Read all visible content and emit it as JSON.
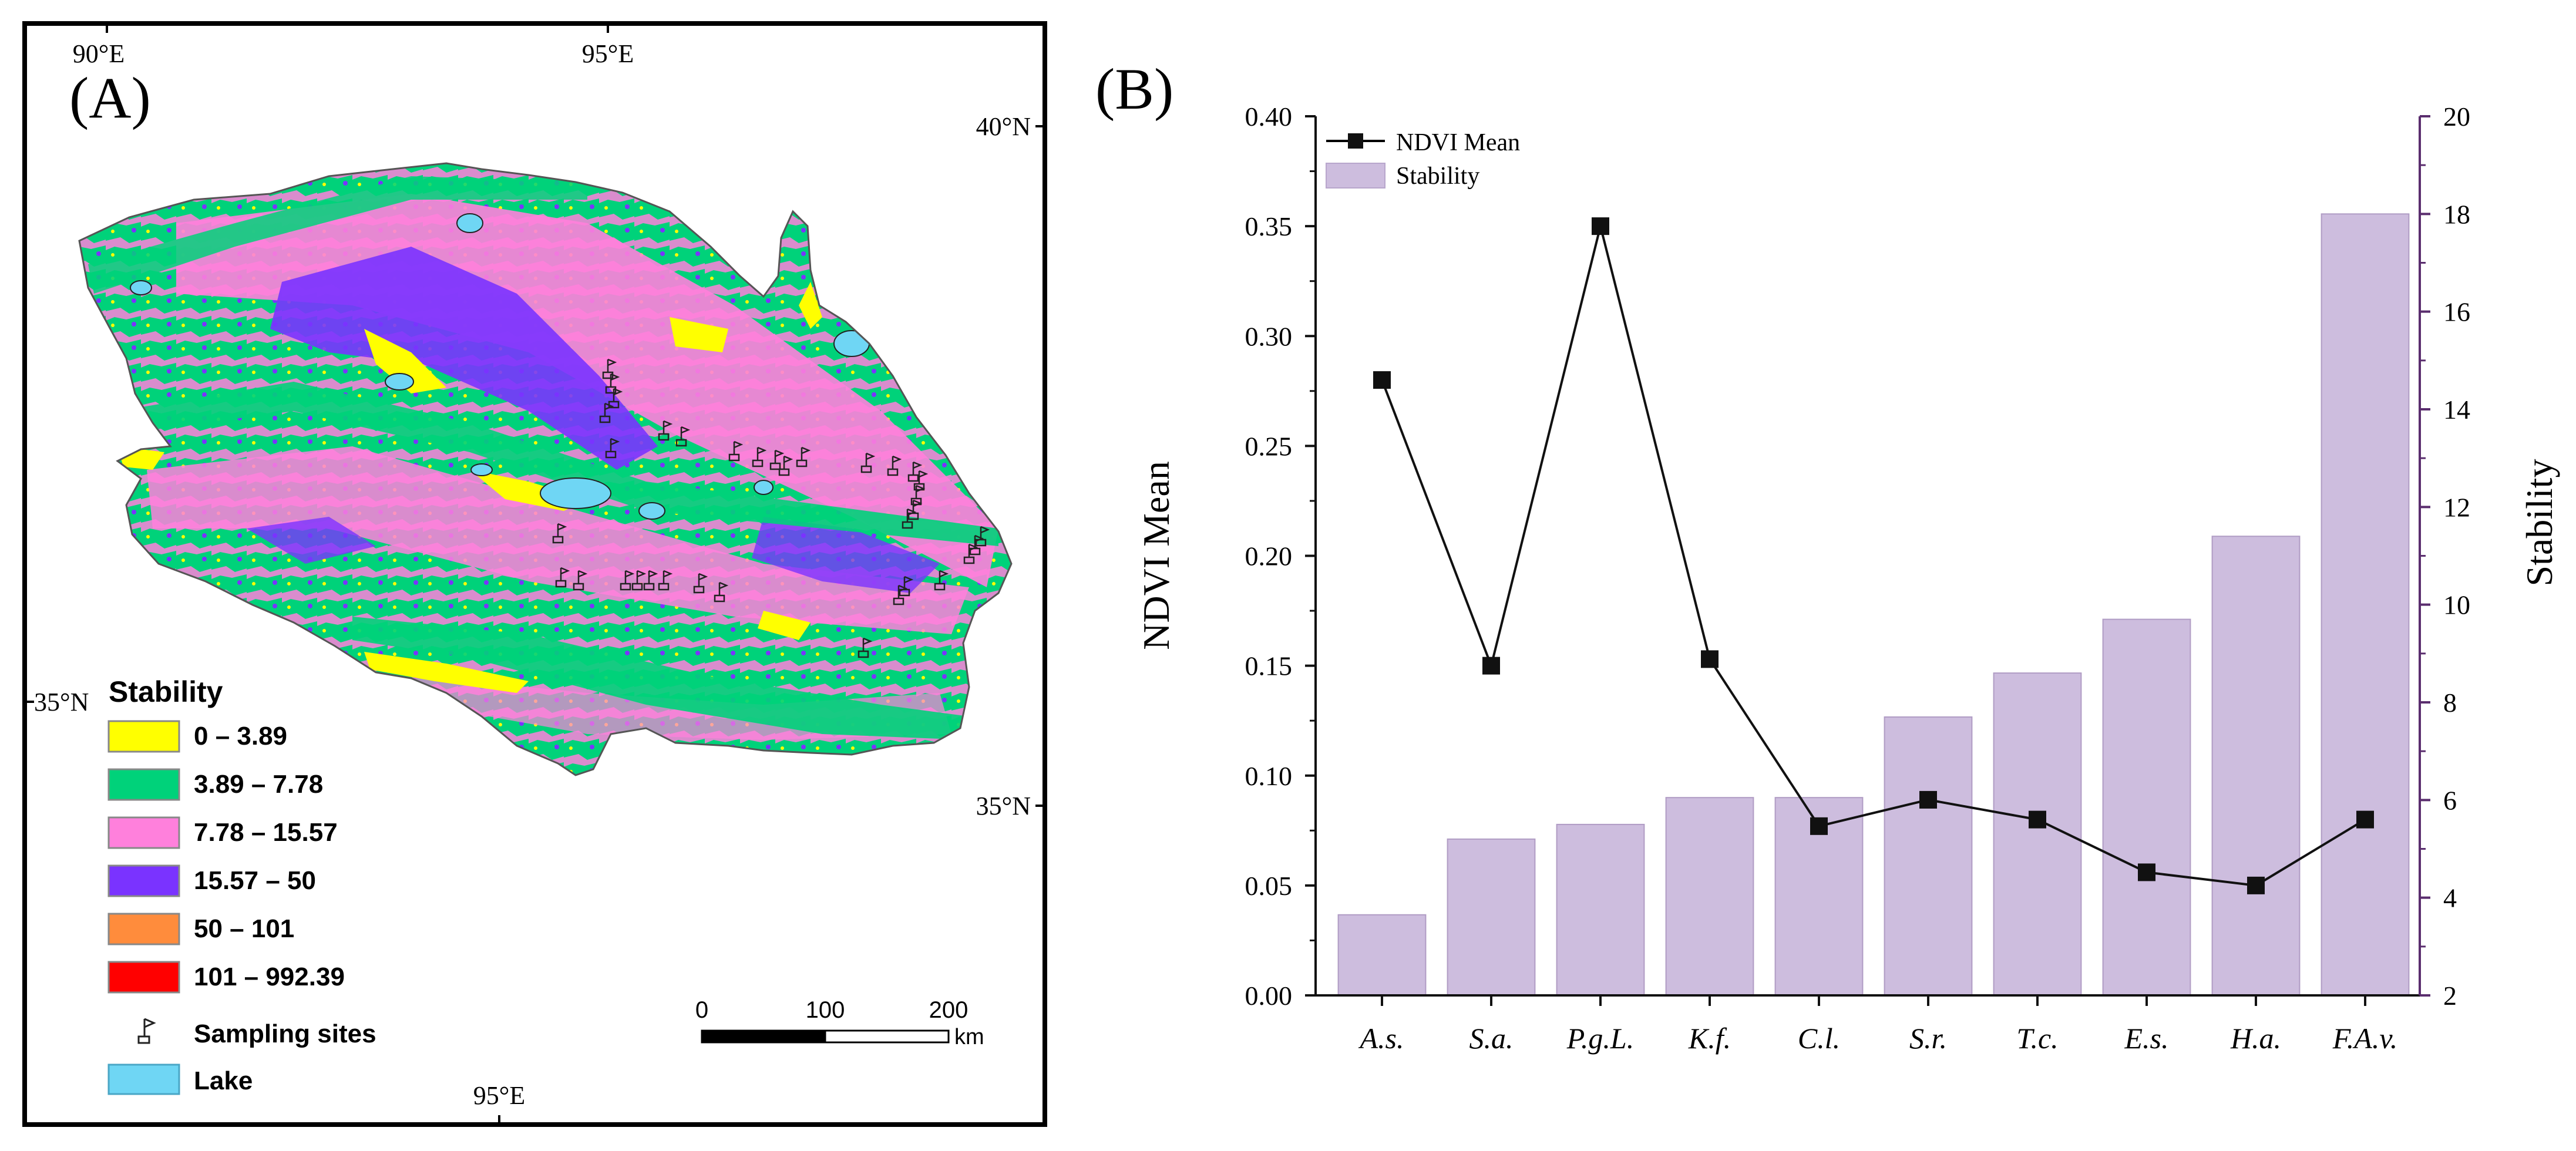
{
  "panel_a": {
    "label": "(A)",
    "graticule": {
      "lon_top_left": "90°E",
      "lon_top_mid": "95°E",
      "lat_right_top": "40°N",
      "lat_left": "35°N",
      "lat_right_bottom": "35°N",
      "lon_bottom": "95°E"
    },
    "legend": {
      "title": "Stability",
      "classes": [
        {
          "label": "0 – 3.89",
          "color": "#ffff00"
        },
        {
          "label": "3.89 – 7.78",
          "color": "#00d27a"
        },
        {
          "label": "7.78 – 15.57",
          "color": "#ff80dc"
        },
        {
          "label": "15.57 – 50",
          "color": "#7a33ff"
        },
        {
          "label": "50 – 101",
          "color": "#ff8c3c"
        },
        {
          "label": "101 – 992.39",
          "color": "#ff0000"
        }
      ],
      "sampling_label": "Sampling sites",
      "lake_label": "Lake",
      "lake_color": "#6fd6f4"
    },
    "scalebar": {
      "tick_0": "0",
      "tick_100": "100",
      "tick_200": "200",
      "unit": "km"
    }
  },
  "panel_b": {
    "label": "(B)"
  },
  "chart_data": {
    "type": "bar",
    "categories": [
      "A.s.",
      "S.a.",
      "P.g.L.",
      "K.f.",
      "C.l.",
      "S.r.",
      "T.c.",
      "E.s.",
      "H.a.",
      "F.A.v."
    ],
    "series": [
      {
        "name": "NDVI Mean",
        "type": "line",
        "axis": "left",
        "values": [
          0.28,
          0.15,
          0.35,
          0.153,
          0.077,
          0.089,
          0.08,
          0.056,
          0.05,
          0.08
        ],
        "color": "#000000"
      },
      {
        "name": "Stability",
        "type": "bar",
        "axis": "right",
        "values": [
          3.65,
          5.2,
          5.5,
          6.05,
          6.05,
          7.7,
          8.6,
          9.7,
          11.4,
          18.0
        ],
        "color": "#cdbdde"
      }
    ],
    "ylabel": "NDVI Mean",
    "y2label": "Stability",
    "ylim": [
      0,
      0.4
    ],
    "y2lim": [
      2,
      20
    ],
    "yticks": [
      "0.00",
      "0.05",
      "0.10",
      "0.15",
      "0.20",
      "0.25",
      "0.30",
      "0.35",
      "0.40"
    ],
    "y2ticks": [
      "2",
      "4",
      "6",
      "8",
      "10",
      "12",
      "14",
      "16",
      "18",
      "20"
    ],
    "legend": "top-left",
    "axis_right_color": "#5a2d6e"
  }
}
